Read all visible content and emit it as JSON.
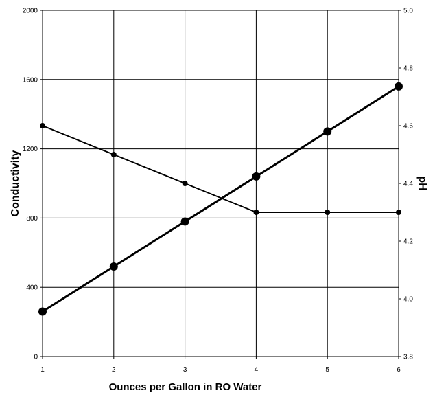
{
  "chart_data": {
    "type": "line",
    "xlabel": "Ounces per Gallon in RO Water",
    "ylabel_left": "Conductivity",
    "ylabel_right": "pH",
    "x_ticks": [
      "1",
      "2",
      "3",
      "4",
      "5",
      "6"
    ],
    "xlim": [
      1,
      6
    ],
    "ylim_left": [
      0,
      2000
    ],
    "ylim_right": [
      3.8,
      5.0
    ],
    "y_ticks_left": [
      "0",
      "400",
      "800",
      "1200",
      "1600",
      "2000"
    ],
    "y_ticks_right": [
      "3.8",
      "4.0",
      "4.2",
      "4.4",
      "4.6",
      "4.8",
      "5.0"
    ],
    "grid": true,
    "legend": "none",
    "series": [
      {
        "axis": "left",
        "x": [
          1,
          2,
          3,
          4,
          5,
          6
        ],
        "values": [
          260,
          520,
          780,
          1040,
          1300,
          1560
        ],
        "color": "#000000"
      },
      {
        "axis": "right",
        "x": [
          1,
          2,
          3,
          4,
          5,
          6
        ],
        "values": [
          4.6,
          4.5,
          4.4,
          4.3,
          4.3,
          4.3
        ],
        "color": "#000000"
      }
    ]
  }
}
